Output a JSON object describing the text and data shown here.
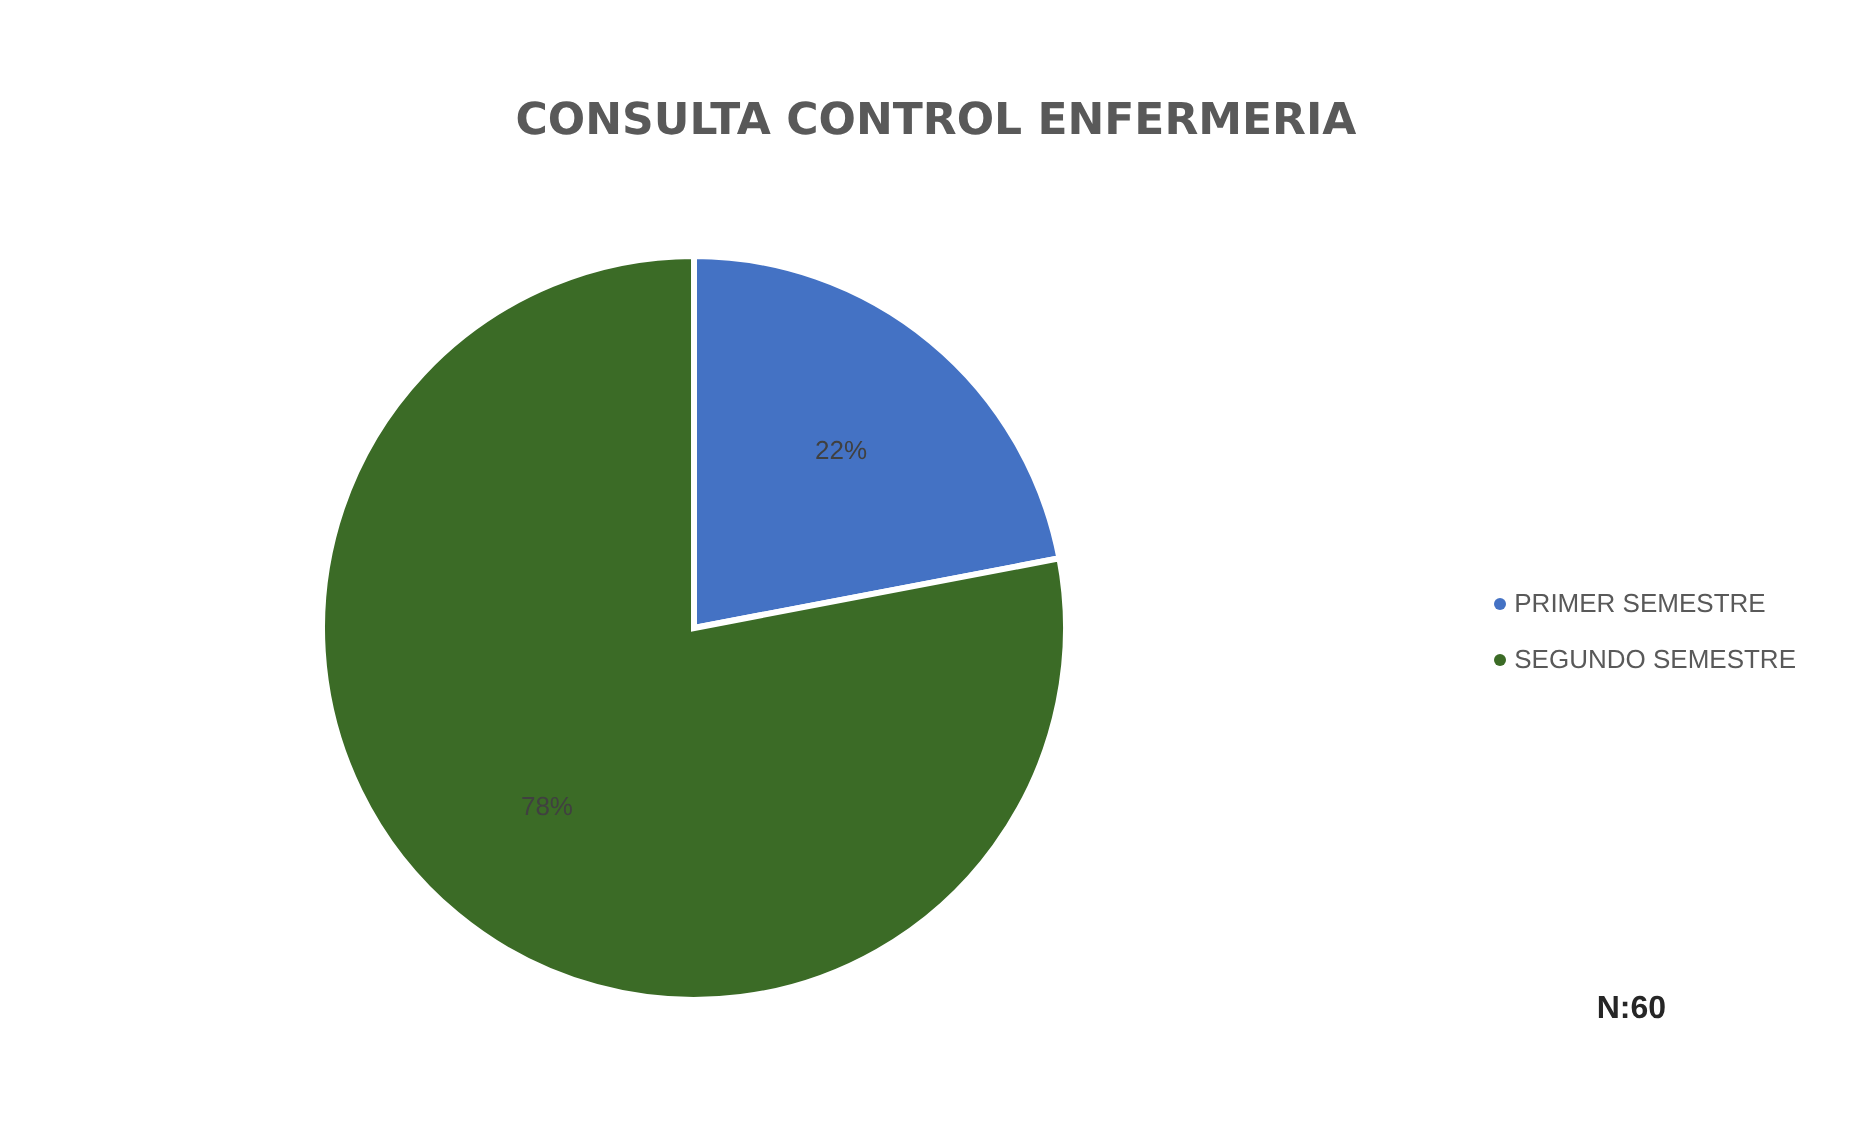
{
  "chart_data": {
    "type": "pie",
    "title": "CONSULTA CONTROL ENFERMERIA",
    "categories": [
      "PRIMER SEMESTRE",
      "SEGUNDO SEMESTRE"
    ],
    "values": [
      22,
      78
    ],
    "colors": [
      "#4472c4",
      "#3b6b26"
    ],
    "value_labels": [
      "22%",
      "78%"
    ],
    "legend": "right",
    "annotations": [
      "N:60"
    ]
  }
}
